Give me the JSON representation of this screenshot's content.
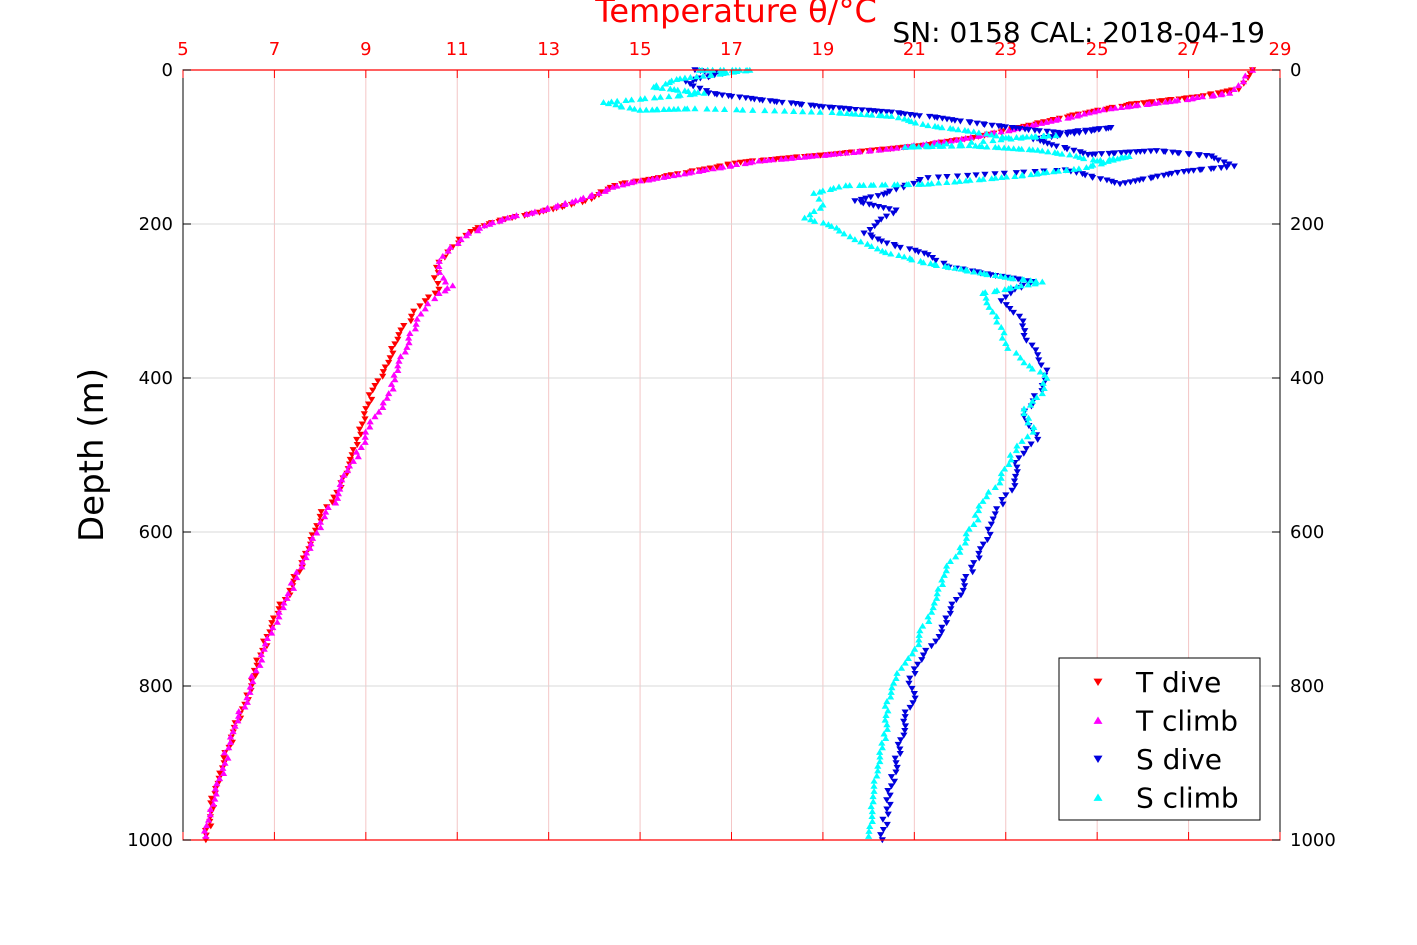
{
  "colors": {
    "t_dive": "#ff0000",
    "t_climb": "#ff00ff",
    "s_dive": "#0000dd",
    "s_climb": "#00ffff",
    "axis": "#000000",
    "top_axis": "#ff0000",
    "grid": "#d8d8d8",
    "grid_red": "#f4c6c6"
  },
  "chart_data": {
    "type": "scatter",
    "title": "Temperature θ/°C",
    "annotation": "SN: 0158  CAL: 2018-04-19",
    "ylabel": "Depth (m)",
    "xlim": [
      5,
      29
    ],
    "ylim": [
      0,
      1000
    ],
    "y_reversed": true,
    "x_ticks": [
      5,
      7,
      9,
      11,
      13,
      15,
      17,
      19,
      21,
      23,
      25,
      27,
      29
    ],
    "y_ticks": [
      0,
      200,
      400,
      600,
      800,
      1000
    ],
    "x_axis_position": "top",
    "grid": true,
    "legend_position": "bottom-right",
    "series": [
      {
        "name": "T dive",
        "marker": "triangle-down",
        "points": [
          [
            28.4,
            0
          ],
          [
            28.3,
            10
          ],
          [
            28.1,
            25
          ],
          [
            27.2,
            35
          ],
          [
            25.7,
            45
          ],
          [
            24.4,
            60
          ],
          [
            23.3,
            75
          ],
          [
            22.3,
            88
          ],
          [
            21.2,
            98
          ],
          [
            20.0,
            105
          ],
          [
            18.7,
            112
          ],
          [
            17.2,
            120
          ],
          [
            16.3,
            130
          ],
          [
            15.4,
            140
          ],
          [
            14.6,
            148
          ],
          [
            14.3,
            155
          ],
          [
            14.1,
            162
          ],
          [
            13.8,
            170
          ],
          [
            13.3,
            178
          ],
          [
            12.8,
            185
          ],
          [
            12.2,
            192
          ],
          [
            11.7,
            200
          ],
          [
            11.3,
            210
          ],
          [
            10.9,
            230
          ],
          [
            10.6,
            250
          ],
          [
            10.5,
            270
          ],
          [
            10.6,
            285
          ],
          [
            10.3,
            300
          ],
          [
            10.0,
            320
          ],
          [
            9.7,
            350
          ],
          [
            9.5,
            380
          ],
          [
            9.2,
            410
          ],
          [
            9.0,
            440
          ],
          [
            8.8,
            480
          ],
          [
            8.7,
            500
          ],
          [
            8.5,
            530
          ],
          [
            8.3,
            555
          ],
          [
            8.0,
            580
          ],
          [
            7.8,
            610
          ],
          [
            7.6,
            640
          ],
          [
            7.4,
            670
          ],
          [
            7.1,
            700
          ],
          [
            6.9,
            730
          ],
          [
            6.7,
            760
          ],
          [
            6.5,
            800
          ],
          [
            6.3,
            830
          ],
          [
            6.1,
            860
          ],
          [
            5.9,
            900
          ],
          [
            5.7,
            940
          ],
          [
            5.6,
            970
          ],
          [
            5.5,
            1000
          ]
        ]
      },
      {
        "name": "T climb",
        "marker": "triangle-up",
        "points": [
          [
            28.4,
            0
          ],
          [
            28.2,
            15
          ],
          [
            27.9,
            30
          ],
          [
            26.7,
            40
          ],
          [
            25.3,
            50
          ],
          [
            24.1,
            65
          ],
          [
            22.9,
            80
          ],
          [
            21.8,
            92
          ],
          [
            20.5,
            102
          ],
          [
            19.1,
            110
          ],
          [
            17.6,
            118
          ],
          [
            16.6,
            128
          ],
          [
            15.6,
            138
          ],
          [
            14.8,
            146
          ],
          [
            14.4,
            152
          ],
          [
            14.1,
            160
          ],
          [
            13.7,
            168
          ],
          [
            13.2,
            176
          ],
          [
            12.7,
            184
          ],
          [
            12.1,
            192
          ],
          [
            11.6,
            202
          ],
          [
            11.2,
            215
          ],
          [
            10.8,
            235
          ],
          [
            10.6,
            255
          ],
          [
            10.7,
            270
          ],
          [
            10.9,
            280
          ],
          [
            10.6,
            290
          ],
          [
            10.3,
            310
          ],
          [
            10.1,
            330
          ],
          [
            9.9,
            360
          ],
          [
            9.7,
            390
          ],
          [
            9.5,
            420
          ],
          [
            9.2,
            450
          ],
          [
            8.9,
            490
          ],
          [
            8.6,
            520
          ],
          [
            8.4,
            550
          ],
          [
            8.1,
            580
          ],
          [
            7.8,
            615
          ],
          [
            7.6,
            645
          ],
          [
            7.3,
            680
          ],
          [
            7.1,
            710
          ],
          [
            6.8,
            745
          ],
          [
            6.6,
            780
          ],
          [
            6.4,
            815
          ],
          [
            6.2,
            845
          ],
          [
            6.0,
            880
          ],
          [
            5.8,
            920
          ],
          [
            5.6,
            960
          ],
          [
            5.5,
            995
          ]
        ]
      },
      {
        "name": "S dive",
        "marker": "triangle-down",
        "points": [
          [
            16.2,
            0
          ],
          [
            16.8,
            5
          ],
          [
            16.0,
            15
          ],
          [
            16.5,
            30
          ],
          [
            17.5,
            38
          ],
          [
            19.0,
            48
          ],
          [
            20.5,
            55
          ],
          [
            21.5,
            62
          ],
          [
            22.7,
            72
          ],
          [
            24.2,
            82
          ],
          [
            25.3,
            75
          ],
          [
            23.6,
            90
          ],
          [
            24.8,
            110
          ],
          [
            26.3,
            105
          ],
          [
            27.5,
            112
          ],
          [
            28.0,
            125
          ],
          [
            26.9,
            132
          ],
          [
            25.5,
            148
          ],
          [
            24.3,
            130
          ],
          [
            21.3,
            140
          ],
          [
            20.4,
            160
          ],
          [
            19.7,
            170
          ],
          [
            20.6,
            182
          ],
          [
            20.2,
            198
          ],
          [
            19.9,
            212
          ],
          [
            20.4,
            225
          ],
          [
            21.3,
            240
          ],
          [
            21.7,
            255
          ],
          [
            22.6,
            265
          ],
          [
            23.6,
            275
          ],
          [
            23.2,
            285
          ],
          [
            22.9,
            300
          ],
          [
            23.3,
            320
          ],
          [
            23.4,
            345
          ],
          [
            23.7,
            370
          ],
          [
            23.9,
            390
          ],
          [
            23.8,
            410
          ],
          [
            23.6,
            430
          ],
          [
            23.4,
            450
          ],
          [
            23.7,
            480
          ],
          [
            23.2,
            510
          ],
          [
            23.2,
            540
          ],
          [
            22.8,
            570
          ],
          [
            22.6,
            610
          ],
          [
            22.3,
            640
          ],
          [
            22.1,
            670
          ],
          [
            21.8,
            700
          ],
          [
            21.6,
            730
          ],
          [
            21.2,
            760
          ],
          [
            20.9,
            790
          ],
          [
            21.0,
            810
          ],
          [
            20.8,
            840
          ],
          [
            20.7,
            870
          ],
          [
            20.6,
            900
          ],
          [
            20.5,
            930
          ],
          [
            20.4,
            960
          ],
          [
            20.3,
            1000
          ]
        ]
      },
      {
        "name": "S climb",
        "marker": "triangle-up",
        "points": [
          [
            16.3,
            0
          ],
          [
            17.4,
            0
          ],
          [
            15.8,
            12
          ],
          [
            15.3,
            22
          ],
          [
            16.4,
            30
          ],
          [
            14.2,
            42
          ],
          [
            15.0,
            52
          ],
          [
            16.2,
            50
          ],
          [
            19.2,
            55
          ],
          [
            20.5,
            60
          ],
          [
            21.3,
            72
          ],
          [
            22.3,
            80
          ],
          [
            23.0,
            88
          ],
          [
            24.1,
            85
          ],
          [
            20.8,
            100
          ],
          [
            22.2,
            98
          ],
          [
            23.7,
            104
          ],
          [
            24.4,
            110
          ],
          [
            25.0,
            118
          ],
          [
            25.7,
            112
          ],
          [
            24.6,
            128
          ],
          [
            23.2,
            138
          ],
          [
            21.3,
            148
          ],
          [
            19.5,
            150
          ],
          [
            18.8,
            160
          ],
          [
            19.0,
            175
          ],
          [
            18.6,
            192
          ],
          [
            19.3,
            205
          ],
          [
            19.7,
            220
          ],
          [
            20.3,
            235
          ],
          [
            21.2,
            250
          ],
          [
            22.3,
            262
          ],
          [
            23.1,
            270
          ],
          [
            23.8,
            275
          ],
          [
            22.5,
            290
          ],
          [
            22.8,
            320
          ],
          [
            23.0,
            355
          ],
          [
            23.4,
            380
          ],
          [
            23.9,
            400
          ],
          [
            23.8,
            420
          ],
          [
            23.4,
            440
          ],
          [
            23.6,
            470
          ],
          [
            23.1,
            500
          ],
          [
            22.9,
            530
          ],
          [
            22.5,
            560
          ],
          [
            22.3,
            590
          ],
          [
            22.0,
            620
          ],
          [
            21.7,
            650
          ],
          [
            21.5,
            680
          ],
          [
            21.3,
            710
          ],
          [
            21.1,
            740
          ],
          [
            20.8,
            770
          ],
          [
            20.6,
            790
          ],
          [
            20.4,
            820
          ],
          [
            20.4,
            850
          ],
          [
            20.3,
            880
          ],
          [
            20.2,
            910
          ],
          [
            20.1,
            950
          ],
          [
            20.0,
            995
          ]
        ]
      }
    ]
  }
}
